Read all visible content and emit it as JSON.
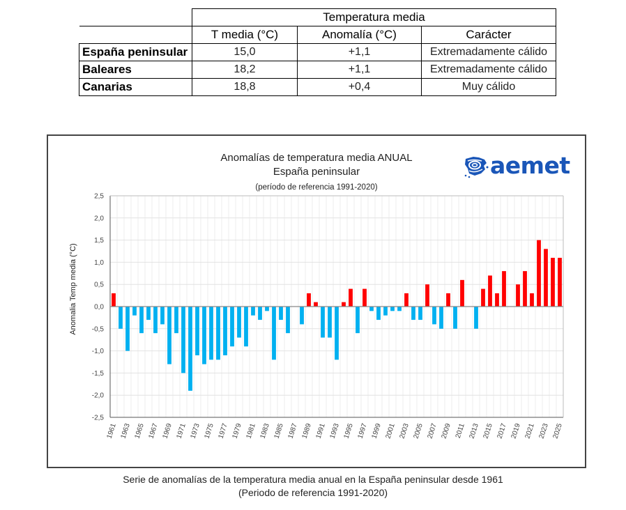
{
  "summary_table": {
    "group_header": "Temperatura media",
    "columns": [
      "T media (°C)",
      "Anomalía (°C)",
      "Carácter"
    ],
    "rows": [
      {
        "region": "España peninsular",
        "t_media": "15,0",
        "anomalia": "+1,1",
        "caracter": "Extremadamente cálido"
      },
      {
        "region": "Baleares",
        "t_media": "18,2",
        "anomalia": "+1,1",
        "caracter": "Extremadamente cálido"
      },
      {
        "region": "Canarias",
        "t_media": "18,8",
        "anomalia": "+0,4",
        "caracter": "Muy cálido"
      }
    ]
  },
  "logo": {
    "text": "aemet",
    "icon": "aemet-logo-icon",
    "color": "#1a56b8"
  },
  "caption": {
    "line1": "Serie de anomalías de la temperatura media anual en la España peninsular desde 1961",
    "line2": "(Periodo de referencia 1991-2020)"
  },
  "chart_data": {
    "type": "bar",
    "title": "Anomalías de temperatura media ANUAL",
    "subtitle": "España peninsular",
    "note": "(período de referencia 1991-2020)",
    "xlabel": "",
    "ylabel": "Anomalia Temp media (°C)",
    "ylim": [
      -2.5,
      2.5
    ],
    "yticks": [
      2.5,
      2.0,
      1.5,
      1.0,
      0.5,
      0.0,
      -0.5,
      -1.0,
      -1.5,
      -2.0,
      -2.5
    ],
    "ytick_labels": [
      "2,5",
      "2,0",
      "1,5",
      "1,0",
      "0,5",
      "0,0",
      "-0,5",
      "-1,0",
      "-1,5",
      "-2,0",
      "-2,5"
    ],
    "xtick_labels": [
      "1961",
      "1963",
      "1965",
      "1967",
      "1969",
      "1971",
      "1973",
      "1975",
      "1977",
      "1979",
      "1981",
      "1983",
      "1985",
      "1987",
      "1989",
      "1991",
      "1993",
      "1995",
      "1997",
      "1999",
      "2001",
      "2003",
      "2005",
      "2007",
      "2009",
      "2011",
      "2013",
      "2015",
      "2017",
      "2019",
      "2021",
      "2023",
      "2025"
    ],
    "grid": true,
    "legend": "none",
    "colors": {
      "positive": "#ff0000",
      "negative": "#00b0f0"
    },
    "categories": [
      1961,
      1962,
      1963,
      1964,
      1965,
      1966,
      1967,
      1968,
      1969,
      1970,
      1971,
      1972,
      1973,
      1974,
      1975,
      1976,
      1977,
      1978,
      1979,
      1980,
      1981,
      1982,
      1983,
      1984,
      1985,
      1986,
      1987,
      1988,
      1989,
      1990,
      1991,
      1992,
      1993,
      1994,
      1995,
      1996,
      1997,
      1998,
      1999,
      2000,
      2001,
      2002,
      2003,
      2004,
      2005,
      2006,
      2007,
      2008,
      2009,
      2010,
      2011,
      2012,
      2013,
      2014,
      2015,
      2016,
      2017,
      2018,
      2019,
      2020,
      2021,
      2022,
      2023,
      2024,
      2025
    ],
    "values": [
      0.3,
      -0.5,
      -1.0,
      -0.2,
      -0.6,
      -0.3,
      -0.6,
      -0.4,
      -1.3,
      -0.6,
      -1.5,
      -1.9,
      -1.1,
      -1.3,
      -1.2,
      -1.2,
      -1.1,
      -0.9,
      -0.7,
      -0.9,
      -0.2,
      -0.3,
      -0.1,
      -1.2,
      -0.3,
      -0.6,
      0.0,
      -0.4,
      0.3,
      0.1,
      -0.7,
      -0.7,
      -1.2,
      0.1,
      0.4,
      -0.6,
      0.4,
      -0.1,
      -0.3,
      -0.2,
      -0.1,
      -0.1,
      0.3,
      -0.3,
      -0.3,
      0.5,
      -0.4,
      -0.5,
      0.3,
      -0.5,
      0.6,
      0.0,
      -0.5,
      0.4,
      0.7,
      0.3,
      0.8,
      0.0,
      0.5,
      0.8,
      0.3,
      1.5,
      1.3,
      1.1,
      1.1
    ]
  }
}
